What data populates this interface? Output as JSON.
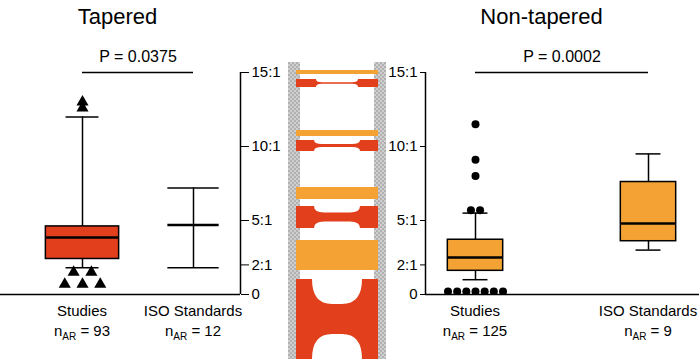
{
  "chart_data": [
    {
      "type": "box",
      "title": "Tapered",
      "annotation": "P = 0.0375",
      "categories": [
        "Studies",
        "ISO Standards"
      ],
      "n": [
        93,
        12
      ],
      "n_symbol": "n",
      "n_subscript": "AR",
      "n_separator": " = ",
      "boxes": [
        {
          "min": 1.8,
          "q1": 2.4,
          "median": 3.85,
          "q3": 4.6,
          "max": 12.0,
          "outliers": [
            13.0,
            12.6,
            1.5,
            1.5,
            0.7,
            0.7,
            0.7
          ]
        },
        {
          "min": 1.8,
          "q1": 4.7,
          "median": 4.7,
          "q3": 4.7,
          "max": 7.2,
          "outliers": []
        }
      ],
      "colors": [
        "#e2401c",
        "none"
      ],
      "marker": "triangle",
      "ylim": [
        0,
        15
      ],
      "yticks": [
        0,
        {
          "value": 2,
          "label": "2:1"
        },
        {
          "value": 5,
          "label": "5:1"
        },
        {
          "value": 10,
          "label": "10:1"
        },
        {
          "value": 15,
          "label": "15:1"
        }
      ]
    },
    {
      "type": "box",
      "title": "Non-tapered",
      "annotation": "P = 0.0002",
      "categories": [
        "Studies",
        "ISO Standards"
      ],
      "n": [
        125,
        9
      ],
      "n_symbol": "n",
      "n_subscript": "AR",
      "n_separator": " = ",
      "boxes": [
        {
          "min": 1.0,
          "q1": 1.6,
          "median": 2.5,
          "q3": 3.7,
          "max": 5.5,
          "outliers": [
            11.5,
            9.1,
            8.0,
            5.7,
            5.7,
            0.2,
            0.2,
            0.2,
            0.2,
            0.2,
            0.2,
            0.2
          ]
        },
        {
          "min": 3.0,
          "q1": 3.6,
          "median": 4.8,
          "q3": 7.6,
          "max": 9.5,
          "outliers": []
        }
      ],
      "colors": [
        "#f4a233",
        "#f4a233"
      ],
      "marker": "circle",
      "ylim": [
        0,
        15
      ],
      "yticks": [
        0,
        {
          "value": 2,
          "label": "2:1"
        },
        {
          "value": 5,
          "label": "5:1"
        },
        {
          "value": 10,
          "label": "10:1"
        },
        {
          "value": 15,
          "label": "15:1"
        }
      ]
    }
  ]
}
